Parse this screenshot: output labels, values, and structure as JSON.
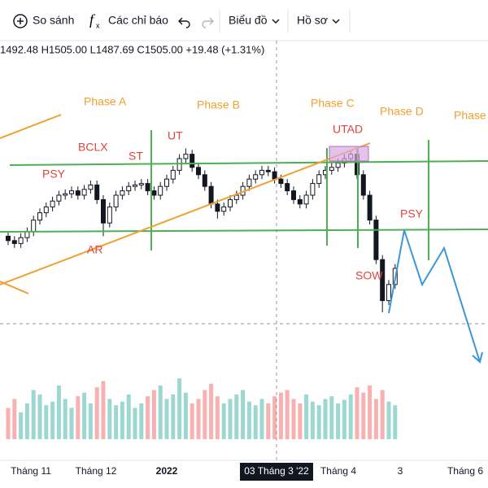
{
  "toolbar": {
    "compare": "So sánh",
    "indicators": "Các chỉ báo",
    "chart": "Biểu đồ",
    "profile": "Hồ sơ"
  },
  "ohlc_legend": "1492.48  H1505.00  L1487.69  C1505.00  +19.48 (+1.31%)",
  "phases": [
    "Phase A",
    "Phase B",
    "Phase C",
    "Phase D",
    "Phase"
  ],
  "events": [
    "PSY",
    "BCLX",
    "ST",
    "UT",
    "UTAD",
    "PSY",
    "AR",
    "SOW"
  ],
  "x_labels": [
    "Tháng 11",
    "Tháng 12",
    "2022",
    "03 Tháng 3 '22",
    "Tháng 4",
    "3",
    "Tháng 6"
  ],
  "chart_data": {
    "type": "candlestick",
    "ylim": [
      1330,
      1530
    ],
    "vlim": [
      0,
      100
    ],
    "up_color": "#26a69a",
    "down_color": "#ef5350",
    "candles": [
      [
        1452,
        1455,
        1446,
        1449
      ],
      [
        1449,
        1452,
        1444,
        1447
      ],
      [
        1447,
        1454,
        1444,
        1451
      ],
      [
        1451,
        1458,
        1448,
        1455
      ],
      [
        1455,
        1466,
        1452,
        1463
      ],
      [
        1463,
        1471,
        1460,
        1468
      ],
      [
        1468,
        1475,
        1465,
        1472
      ],
      [
        1472,
        1479,
        1469,
        1476
      ],
      [
        1476,
        1483,
        1473,
        1480
      ],
      [
        1480,
        1484,
        1477,
        1481
      ],
      [
        1481,
        1486,
        1478,
        1483
      ],
      [
        1483,
        1486,
        1477,
        1480
      ],
      [
        1480,
        1487,
        1477,
        1484
      ],
      [
        1484,
        1490,
        1481,
        1487
      ],
      [
        1487,
        1490,
        1474,
        1477
      ],
      [
        1477,
        1480,
        1452,
        1461
      ],
      [
        1461,
        1475,
        1458,
        1472
      ],
      [
        1472,
        1483,
        1469,
        1480
      ],
      [
        1480,
        1486,
        1477,
        1483
      ],
      [
        1483,
        1489,
        1480,
        1486
      ],
      [
        1486,
        1490,
        1483,
        1487
      ],
      [
        1487,
        1491,
        1484,
        1488
      ],
      [
        1488,
        1491,
        1480,
        1483
      ],
      [
        1483,
        1486,
        1477,
        1480
      ],
      [
        1480,
        1489,
        1477,
        1486
      ],
      [
        1486,
        1494,
        1483,
        1491
      ],
      [
        1491,
        1500,
        1488,
        1497
      ],
      [
        1497,
        1508,
        1494,
        1505
      ],
      [
        1505,
        1512,
        1502,
        1508
      ],
      [
        1508,
        1511,
        1496,
        1499
      ],
      [
        1499,
        1502,
        1491,
        1494
      ],
      [
        1494,
        1497,
        1483,
        1486
      ],
      [
        1486,
        1489,
        1471,
        1474
      ],
      [
        1474,
        1477,
        1464,
        1469
      ],
      [
        1469,
        1475,
        1466,
        1472
      ],
      [
        1472,
        1480,
        1469,
        1477
      ],
      [
        1477,
        1483,
        1474,
        1480
      ],
      [
        1480,
        1489,
        1477,
        1486
      ],
      [
        1486,
        1494,
        1483,
        1491
      ],
      [
        1491,
        1497,
        1488,
        1494
      ],
      [
        1494,
        1500,
        1491,
        1497
      ],
      [
        1497,
        1500,
        1493,
        1496
      ],
      [
        1496,
        1499,
        1488,
        1491
      ],
      [
        1491,
        1494,
        1485,
        1488
      ],
      [
        1488,
        1491,
        1480,
        1483
      ],
      [
        1483,
        1486,
        1474,
        1477
      ],
      [
        1477,
        1480,
        1471,
        1474
      ],
      [
        1474,
        1483,
        1471,
        1480
      ],
      [
        1480,
        1491,
        1477,
        1488
      ],
      [
        1488,
        1497,
        1485,
        1494
      ],
      [
        1494,
        1500,
        1491,
        1497
      ],
      [
        1497,
        1502,
        1494,
        1499
      ],
      [
        1499,
        1505,
        1496,
        1502
      ],
      [
        1502,
        1508,
        1499,
        1505
      ],
      [
        1505,
        1511,
        1502,
        1508
      ],
      [
        1508,
        1511,
        1491,
        1494
      ],
      [
        1494,
        1497,
        1477,
        1480
      ],
      [
        1480,
        1483,
        1460,
        1463
      ],
      [
        1463,
        1466,
        1433,
        1436
      ],
      [
        1436,
        1439,
        1400,
        1408
      ],
      [
        1408,
        1422,
        1405,
        1419
      ],
      [
        1419,
        1433,
        1416,
        1430
      ]
    ],
    "volumes": [
      35,
      45,
      30,
      40,
      55,
      50,
      38,
      42,
      60,
      45,
      35,
      48,
      52,
      40,
      58,
      65,
      45,
      38,
      42,
      50,
      35,
      40,
      48,
      55,
      60,
      45,
      50,
      68,
      52,
      40,
      45,
      55,
      62,
      48,
      40,
      45,
      50,
      55,
      42,
      38,
      45,
      40,
      48,
      52,
      55,
      45,
      40,
      50,
      42,
      38,
      45,
      48,
      40,
      44,
      50,
      58,
      52,
      60,
      45,
      55,
      42,
      38
    ]
  }
}
